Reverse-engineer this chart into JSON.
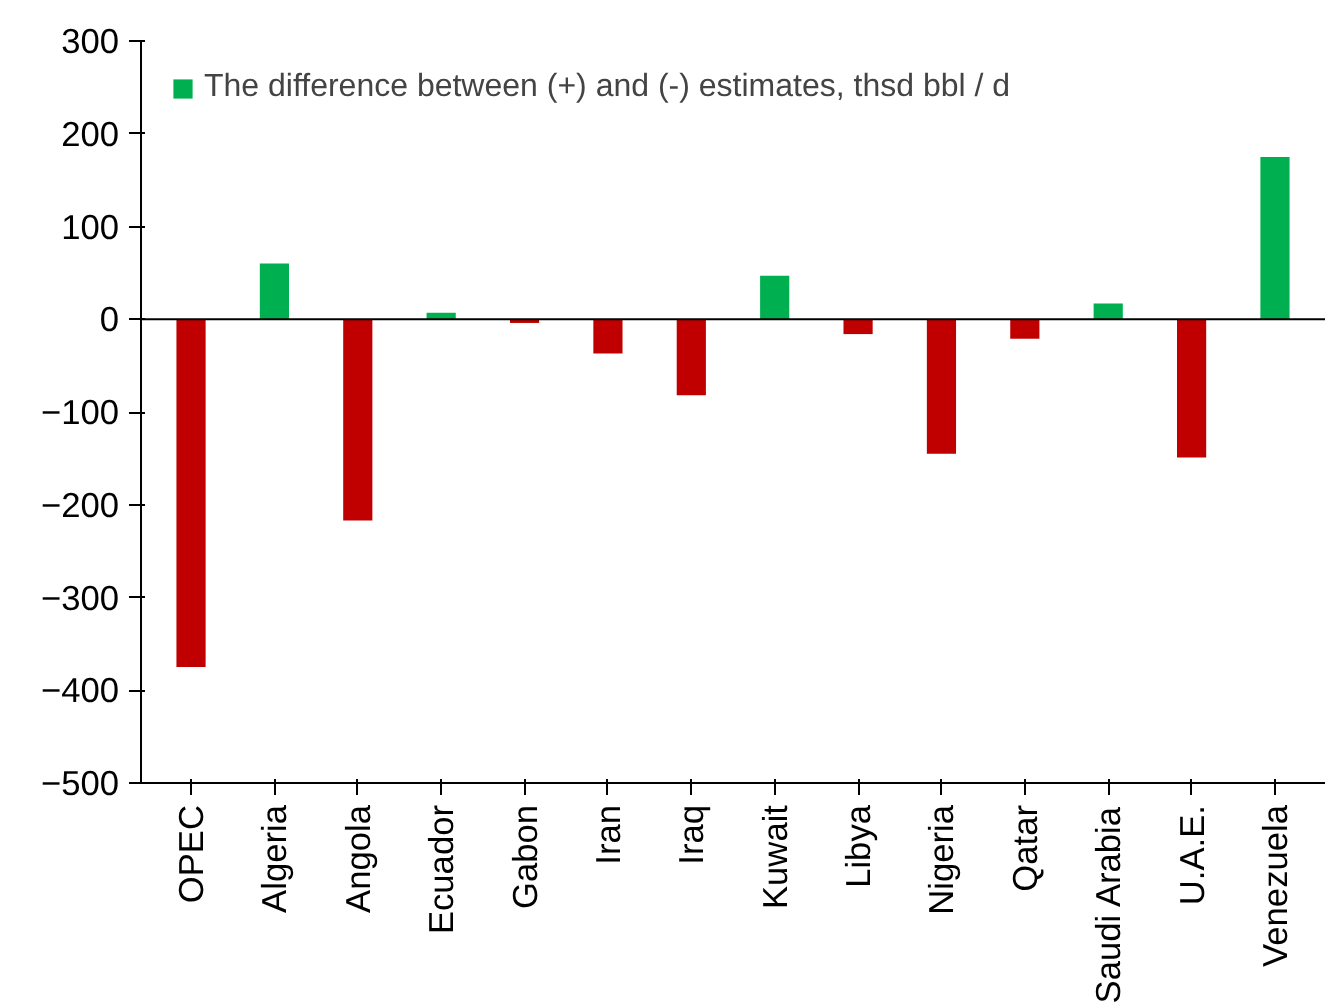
{
  "chart_data": {
    "type": "bar",
    "categories": [
      "OPEC",
      "Algeria",
      "Angola",
      "Ecuador",
      "Gabon",
      "Iran",
      "Iraq",
      "Kuwait",
      "Libya",
      "Nigeria",
      "Qatar",
      "Saudi Arabia",
      "U.A.E.",
      "Venezuela"
    ],
    "series": [
      {
        "name": "The difference between (+) and (-) estimates, thsd bbl / d",
        "color": "#00b050",
        "colors": [
          "#c00000",
          "#00b050",
          "#c00000",
          "#00b050",
          "#c00000",
          "#c00000",
          "#c00000",
          "#00b050",
          "#c00000",
          "#c00000",
          "#c00000",
          "#00b050",
          "#c00000",
          "#00b050"
        ],
        "values": [
          -375,
          60,
          -217,
          7,
          -4,
          -37,
          -82,
          47,
          -16,
          -145,
          -21,
          17,
          -149,
          175
        ]
      }
    ],
    "ylim": [
      -500,
      300
    ],
    "yticks": [
      -500,
      -400,
      -300,
      -200,
      -100,
      0,
      100,
      200,
      300
    ],
    "ref_lines": [
      {
        "axis": "y",
        "value": 0,
        "color": "#000000"
      }
    ],
    "legend": "top left",
    "grid": false
  }
}
